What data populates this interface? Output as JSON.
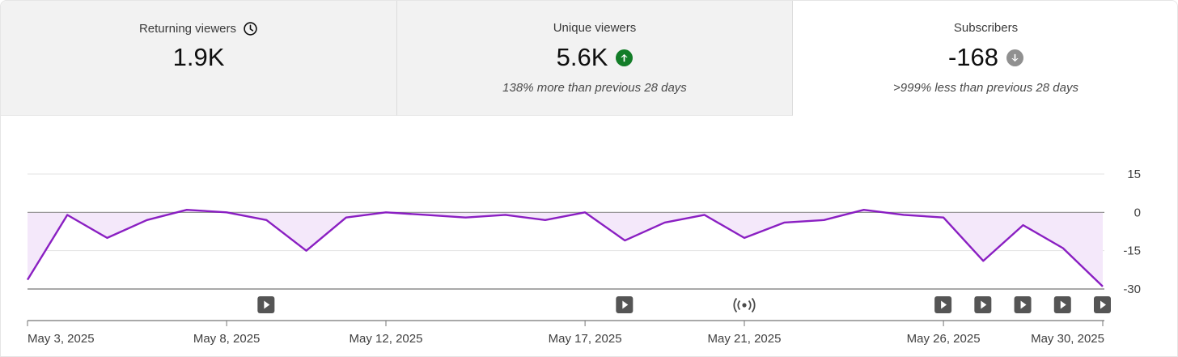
{
  "cards": [
    {
      "label": "Returning viewers",
      "icon": "clock-icon",
      "value": "1.9K",
      "subtext": ""
    },
    {
      "label": "Unique viewers",
      "icon": "arrow-up-icon",
      "value": "5.6K",
      "subtext": "138% more than previous 28 days",
      "badge_color": "#137d28"
    },
    {
      "label": "Subscribers",
      "icon": "arrow-down-icon",
      "value": "-168",
      "subtext": ">999% less than previous 28 days",
      "badge_color": "#909090"
    }
  ],
  "chart_data": {
    "type": "area",
    "series": [
      {
        "values": [
          -26.4,
          -1,
          -10,
          -3,
          1,
          0,
          -3,
          -15,
          -2,
          0,
          -1,
          -2,
          -1,
          -3,
          0,
          -11,
          -4,
          -1,
          -10,
          -4,
          -3,
          1,
          -1,
          -2,
          -19,
          -5,
          -14,
          -29
        ]
      }
    ],
    "x_tick_labels": [
      "May 3, 2025",
      "May 8, 2025",
      "May 12, 2025",
      "May 17, 2025",
      "May 21, 2025",
      "May 26, 2025",
      "May 30, 2025"
    ],
    "x_tick_days": [
      3,
      8,
      12,
      17,
      21,
      26,
      30
    ],
    "x_days": [
      3,
      4,
      5,
      6,
      7,
      8,
      9,
      10,
      11,
      12,
      13,
      14,
      15,
      16,
      17,
      18,
      19,
      20,
      21,
      22,
      23,
      24,
      25,
      26,
      27,
      28,
      29,
      30
    ],
    "y_tick_labels": [
      "15",
      "0",
      "-15",
      "-30"
    ],
    "y_ticks": [
      15,
      0,
      -15,
      -30
    ],
    "ylim": [
      -30,
      15
    ],
    "line_color": "#8a1fc2",
    "fill_color": "#f4e8fa",
    "grid": true,
    "events": [
      {
        "day": 9,
        "type": "video",
        "icon": "play-icon"
      },
      {
        "day": 18,
        "type": "video",
        "icon": "play-icon"
      },
      {
        "day": 21,
        "type": "live",
        "icon": "live-broadcast-icon"
      },
      {
        "day": 26,
        "type": "video",
        "icon": "play-icon"
      },
      {
        "day": 27,
        "type": "video",
        "icon": "play-icon"
      },
      {
        "day": 28,
        "type": "video",
        "icon": "play-icon"
      },
      {
        "day": 29,
        "type": "video",
        "icon": "play-icon"
      },
      {
        "day": 30,
        "type": "video",
        "icon": "play-icon"
      }
    ]
  }
}
